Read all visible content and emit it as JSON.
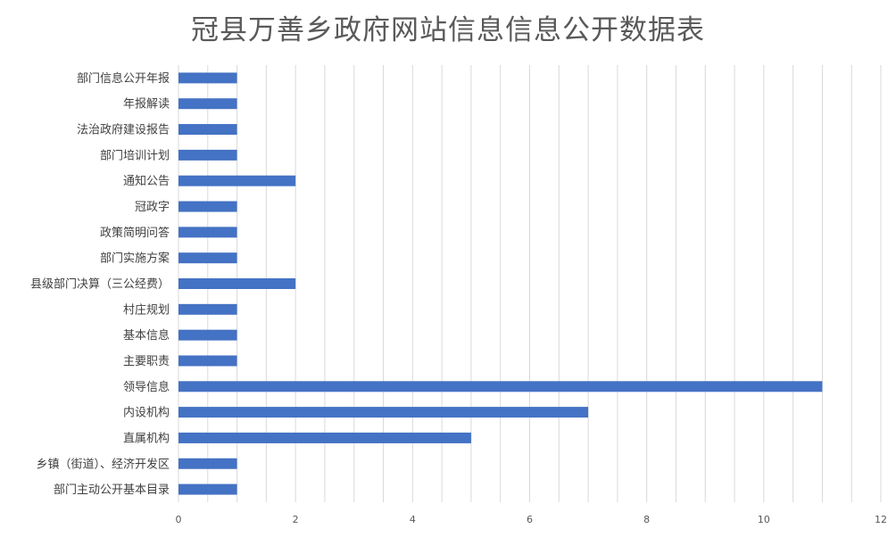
{
  "chart_data": {
    "type": "bar",
    "orientation": "horizontal",
    "title": "冠县万善乡政府网站信息信息公开数据表",
    "categories": [
      "部门信息公开年报",
      "年报解读",
      "法治政府建设报告",
      "部门培训计划",
      "通知公告",
      "冠政字",
      "政策简明问答",
      "部门实施方案",
      "县级部门决算（三公经费）",
      "村庄规划",
      "基本信息",
      "主要职责",
      "领导信息",
      "内设机构",
      "直属机构",
      "乡镇（街道）、经济开发区",
      "部门主动公开基本目录"
    ],
    "values": [
      1,
      1,
      1,
      1,
      2,
      1,
      1,
      1,
      2,
      1,
      1,
      1,
      11,
      7,
      5,
      1,
      1
    ],
    "xlim": [
      0,
      12
    ],
    "x_ticks": [
      "0",
      "2",
      "4",
      "6",
      "8",
      "10",
      "12"
    ],
    "xlabel": "",
    "ylabel": "",
    "grid": true,
    "legend": "none",
    "bar_color": "#4472c4",
    "grid_color": "#d9d9d9"
  }
}
